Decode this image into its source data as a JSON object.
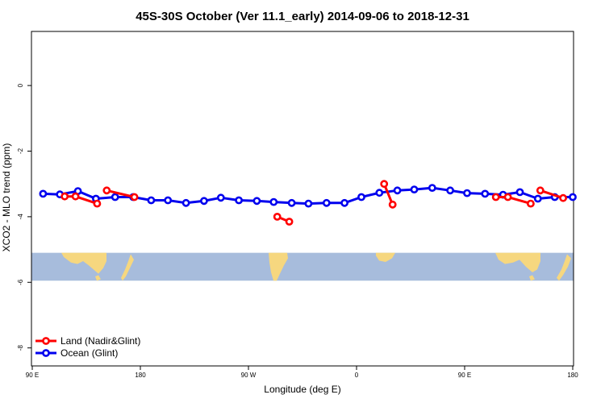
{
  "chart_data": {
    "type": "line",
    "title": "45S-30S October (Ver 11.1_early)   2014-09-06 to 2018-12-31",
    "xlabel": "Longitude (deg E)",
    "ylabel": "XCO2 - MLO trend (ppm)",
    "xlim": [
      90,
      450
    ],
    "ylim": [
      -8.5,
      1.6
    ],
    "x_ticks": [
      {
        "value": 90,
        "label": "90 E"
      },
      {
        "value": 180,
        "label": "180"
      },
      {
        "value": 270,
        "label": "90 W"
      },
      {
        "value": 360,
        "label": "0"
      },
      {
        "value": 450,
        "label": "90 E"
      },
      {
        "value": 540,
        "label": "180"
      }
    ],
    "y_ticks": [
      {
        "value": 0,
        "label": "0"
      },
      {
        "value": -2,
        "label": "-2"
      },
      {
        "value": -4,
        "label": "-4"
      },
      {
        "value": -6,
        "label": "-6"
      },
      {
        "value": -8,
        "label": "-8"
      }
    ],
    "map_strip": {
      "y_top": -5.1,
      "y_bottom": -5.95,
      "ocean_color": "#a7bcdc",
      "land_color": "#f6d77f"
    },
    "legend_position": "bottom-left",
    "series": [
      {
        "name": "Land (Nadir&Glint)",
        "color": "#ff0000",
        "segments": [
          {
            "x": [
              117,
              126,
              144
            ],
            "y": [
              -3.38,
              -3.38,
              -3.6
            ]
          },
          {
            "x": [
              152,
              175
            ],
            "y": [
              -3.2,
              -3.4
            ]
          },
          {
            "x": [
              294,
              304
            ],
            "y": [
              -4.0,
              -4.15
            ]
          },
          {
            "x": [
              383,
              390
            ],
            "y": [
              -3.0,
              -3.63
            ]
          },
          {
            "x": [
              476,
              486,
              505
            ],
            "y": [
              -3.4,
              -3.4,
              -3.6
            ]
          },
          {
            "x": [
              513,
              532
            ],
            "y": [
              -3.2,
              -3.43
            ]
          }
        ]
      },
      {
        "name": "Ocean (Glint)",
        "color": "#0000ee",
        "segments": [
          {
            "x": [
              99,
              113,
              128,
              143,
              159,
              174,
              189,
              203,
              218,
              233,
              247,
              262,
              277,
              291,
              306,
              320,
              335,
              350,
              364,
              379,
              394,
              408,
              423,
              438,
              452,
              467,
              482,
              496,
              511,
              525,
              540
            ],
            "y": [
              -3.3,
              -3.32,
              -3.22,
              -3.45,
              -3.4,
              -3.4,
              -3.5,
              -3.5,
              -3.58,
              -3.52,
              -3.42,
              -3.5,
              -3.52,
              -3.55,
              -3.58,
              -3.6,
              -3.58,
              -3.58,
              -3.4,
              -3.27,
              -3.2,
              -3.17,
              -3.12,
              -3.2,
              -3.28,
              -3.3,
              -3.33,
              -3.25,
              -3.45,
              -3.4,
              -3.4
            ]
          }
        ]
      }
    ]
  }
}
